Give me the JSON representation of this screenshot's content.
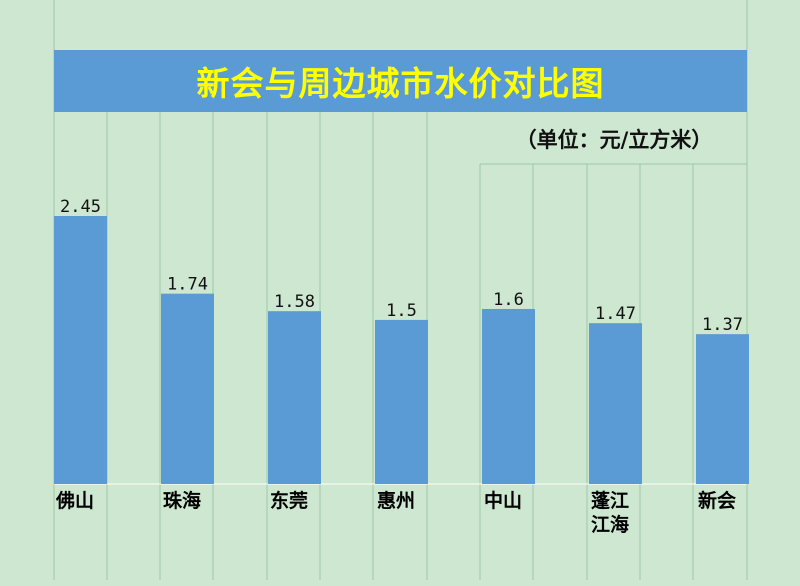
{
  "chart_data": {
    "type": "bar",
    "title": "新会与周边城市水价对比图",
    "unit": "（单位：元/立方米）",
    "categories": [
      "佛山",
      "珠海",
      "东莞",
      "惠州",
      "中山",
      "蓬江\n江海",
      "新会"
    ],
    "values": [
      2.45,
      1.74,
      1.58,
      1.5,
      1.6,
      1.47,
      1.37
    ],
    "value_labels": [
      "2.45",
      "1.74",
      "1.58",
      "1.5",
      "1.6",
      "1.47",
      "1.37"
    ],
    "ylim": [
      0,
      2.45
    ],
    "xlabel": "",
    "ylabel": "",
    "grid": "vertical",
    "legend": "none",
    "colors": {
      "bar": "#5b9bd5",
      "background": "#cde7d0",
      "title_bg": "#5b9bd5",
      "title_text": "#ffff00",
      "gridline": "#9fc9a4"
    }
  }
}
